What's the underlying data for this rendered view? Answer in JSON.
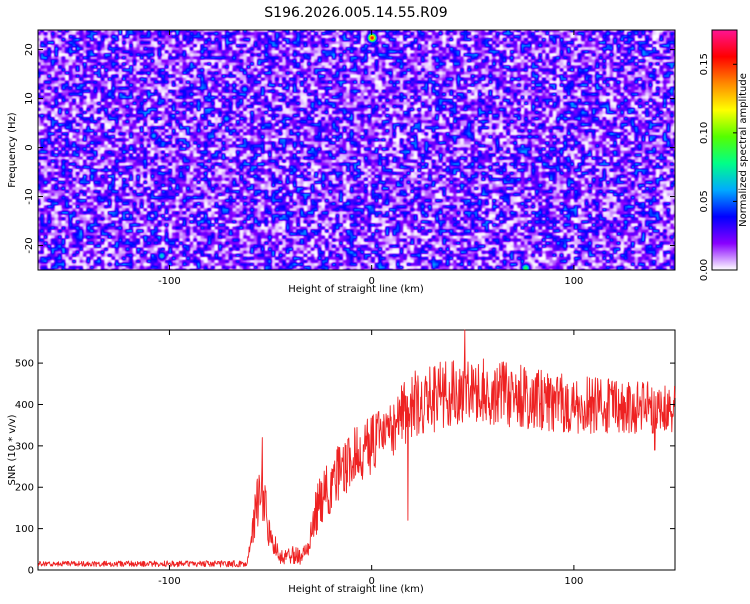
{
  "title": "S196.2026.005.14.55.R09",
  "chart_data": [
    {
      "type": "heatmap",
      "xlabel": "Height of straight line (km)",
      "ylabel": "Frequency (Hz)",
      "xlim": [
        -165,
        150
      ],
      "ylim": [
        -25,
        24
      ],
      "xticks": [
        -100,
        0,
        100
      ],
      "yticks": [
        -20,
        -10,
        0,
        10,
        20
      ],
      "colorbar": {
        "label": "Normalized spectral amplitude",
        "range": [
          0.0,
          0.175
        ],
        "ticks": [
          0.0,
          0.05,
          0.1,
          0.15
        ],
        "tick_labels": [
          "0.00",
          "0.05",
          "0.10",
          "0.15"
        ],
        "colormap": [
          "#ffffff",
          "#8800ff",
          "#0000ff",
          "#00aaff",
          "#00ff88",
          "#55ff00",
          "#ffff00",
          "#ff8800",
          "#ff0000",
          "#ff1493"
        ]
      },
      "typical_amplitude": 0.03,
      "hotspots": [
        {
          "x": 0,
          "y": 22.5,
          "value": 0.16
        },
        {
          "x": 76,
          "y": -24.5,
          "value": 0.09
        },
        {
          "x": -104,
          "y": -22,
          "value": 0.07
        },
        {
          "x": -108,
          "y": 2.5,
          "value": 0.06
        },
        {
          "x": -63,
          "y": 12,
          "value": 0.06
        },
        {
          "x": -72,
          "y": 6,
          "value": 0.06
        }
      ]
    },
    {
      "type": "line",
      "xlabel": "Height of straight line (km)",
      "ylabel": "SNR (10 * v/v)",
      "xlim": [
        -165,
        150
      ],
      "ylim": [
        0,
        580
      ],
      "xticks": [
        -100,
        0,
        100
      ],
      "yticks": [
        0,
        100,
        200,
        300,
        400,
        500
      ],
      "series_color": "#ee2222",
      "envelope": [
        {
          "x": -165,
          "mean": 15,
          "noise": 6
        },
        {
          "x": -62,
          "mean": 15,
          "noise": 8
        },
        {
          "x": -57,
          "mean": 150,
          "noise": 60
        },
        {
          "x": -54,
          "mean": 200,
          "noise": 80
        },
        {
          "x": -50,
          "mean": 80,
          "noise": 40
        },
        {
          "x": -45,
          "mean": 30,
          "noise": 20
        },
        {
          "x": -32,
          "mean": 40,
          "noise": 25
        },
        {
          "x": -27,
          "mean": 150,
          "noise": 60
        },
        {
          "x": -20,
          "mean": 210,
          "noise": 70
        },
        {
          "x": -10,
          "mean": 270,
          "noise": 70
        },
        {
          "x": 5,
          "mean": 320,
          "noise": 70
        },
        {
          "x": 20,
          "mean": 400,
          "noise": 80
        },
        {
          "x": 40,
          "mean": 430,
          "noise": 85
        },
        {
          "x": 60,
          "mean": 430,
          "noise": 80
        },
        {
          "x": 100,
          "mean": 400,
          "noise": 70
        },
        {
          "x": 150,
          "mean": 390,
          "noise": 60
        }
      ],
      "peaks": [
        {
          "x": -54,
          "y": 320
        },
        {
          "x": 18,
          "y": 120
        },
        {
          "x": 46,
          "y": 580
        },
        {
          "x": 140,
          "y": 290
        }
      ]
    }
  ]
}
